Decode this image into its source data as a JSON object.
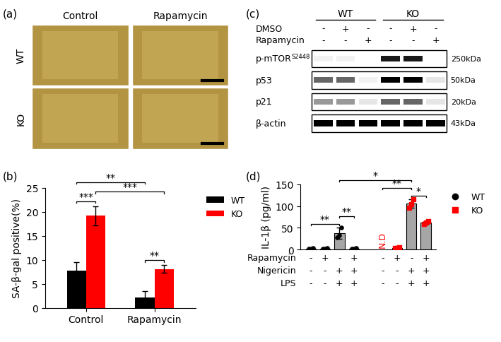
{
  "panel_a": {
    "label": "(a)",
    "columns": [
      "Control",
      "Rapamycin"
    ],
    "rows": [
      "WT",
      "KO"
    ]
  },
  "panel_c": {
    "label": "(c)",
    "groups": [
      {
        "name": "WT",
        "lanes": 3
      },
      {
        "name": "KO",
        "lanes": 3
      }
    ],
    "treatments": [
      {
        "name": "DMSO",
        "values": [
          "-",
          "+",
          "-",
          "-",
          "+",
          "-"
        ]
      },
      {
        "name": "Rapamycin",
        "values": [
          "-",
          "-",
          "+",
          "-",
          "-",
          "+"
        ]
      }
    ],
    "bands": [
      {
        "name": "p-mTOR",
        "superscript": "S2448",
        "size": "250kDa",
        "intensity": [
          0.05,
          0.05,
          0.0,
          0.9,
          0.9,
          0.0
        ]
      },
      {
        "name": "p53",
        "size": "50kDa",
        "intensity": [
          0.6,
          0.6,
          0.05,
          1.0,
          1.0,
          0.1
        ]
      },
      {
        "name": "p21",
        "size": "20kDa",
        "intensity": [
          0.4,
          0.4,
          0.1,
          0.6,
          0.6,
          0.1
        ]
      },
      {
        "name": "β-actin",
        "size": "43kDa",
        "intensity": [
          1.0,
          1.0,
          1.0,
          1.0,
          1.0,
          1.0
        ]
      }
    ]
  },
  "chart_data": [
    {
      "type": "bar",
      "panel_label": "(b)",
      "categories": [
        "Control",
        "Rapamycin"
      ],
      "y_label": "SA-β-gal positive(%)",
      "ylim": [
        0,
        25
      ],
      "yticks": [
        0,
        5,
        10,
        15,
        20,
        25
      ],
      "legend": "upper left",
      "series": [
        {
          "name": "WT",
          "color": "#000000",
          "values": [
            7.7,
            2.2
          ],
          "errors": [
            1.8,
            1.2
          ]
        },
        {
          "name": "KO",
          "color": "#ff0000",
          "values": [
            19.2,
            8.1
          ],
          "errors": [
            2.0,
            0.8
          ]
        }
      ],
      "significance": [
        {
          "between": [
            [
              "Control",
              "WT"
            ],
            [
              "Control",
              "KO"
            ]
          ],
          "label": "***"
        },
        {
          "between": [
            [
              "Control",
              "KO"
            ],
            [
              "Rapamycin",
              "KO"
            ]
          ],
          "label": "***"
        },
        {
          "between": [
            [
              "Rapamycin",
              "WT"
            ],
            [
              "Rapamycin",
              "KO"
            ]
          ],
          "label": "**"
        },
        {
          "between": [
            [
              "Control",
              "WT"
            ],
            [
              "Rapamycin",
              "WT"
            ]
          ],
          "label": "**"
        }
      ]
    },
    {
      "type": "bar",
      "panel_label": "(d)",
      "y_label": "IL-1β (pg/ml)",
      "ylim": [
        0,
        150
      ],
      "yticks": [
        0,
        50,
        100,
        150
      ],
      "tick_labels": "y",
      "legend": "upper left",
      "treatments": [
        {
          "name": "Rapamycin",
          "values": [
            "-",
            "+",
            "-",
            "+",
            "-",
            "+",
            "-",
            "+"
          ]
        },
        {
          "name": "Nigericin",
          "values": [
            "-",
            "-",
            "+",
            "+",
            "-",
            "-",
            "+",
            "+"
          ]
        },
        {
          "name": "LPS",
          "values": [
            "-",
            "-",
            "+",
            "+",
            "-",
            "-",
            "+",
            "+"
          ]
        }
      ],
      "series": [
        {
          "name": "WT",
          "color": "#000000",
          "marker": "circle",
          "colors": [
            "#ffffff",
            "#ffffff",
            "#a6a6a6",
            "#a6a6a6"
          ],
          "values": [
            2,
            2,
            37,
            2
          ],
          "errors": [
            1,
            1,
            13,
            1
          ],
          "points": [
            [
              1,
              2,
              3
            ],
            [
              1,
              2,
              3
            ],
            [
              28,
              33,
              50
            ],
            [
              1,
              2,
              3
            ]
          ]
        },
        {
          "name": "KO",
          "color": "#ff0000",
          "marker": "square",
          "colors": [
            "#ffffff",
            "#ffffff",
            "#a6a6a6",
            "#a6a6a6"
          ],
          "values": [
            null,
            4,
            106,
            62
          ],
          "errors": [
            null,
            1,
            10,
            4
          ],
          "points": [
            [],
            [
              3,
              4,
              5
            ],
            [
              96,
              104,
              115
            ],
            [
              58,
              62,
              66
            ]
          ],
          "value_labels": [
            "N.D",
            null,
            null,
            null
          ]
        }
      ],
      "significance": [
        {
          "between": [
            [
              "WT",
              0
            ],
            [
              "WT",
              2
            ]
          ],
          "label": "**"
        },
        {
          "between": [
            [
              "WT",
              2
            ],
            [
              "WT",
              3
            ]
          ],
          "label": "**"
        },
        {
          "between": [
            [
              "KO",
              2
            ],
            [
              "KO",
              3
            ]
          ],
          "label": "*"
        },
        {
          "between": [
            [
              "KO",
              0
            ],
            [
              "KO",
              2
            ]
          ],
          "label": "**"
        },
        {
          "between": [
            [
              "WT",
              2
            ],
            [
              "KO",
              2
            ]
          ],
          "label": "*"
        }
      ]
    }
  ]
}
